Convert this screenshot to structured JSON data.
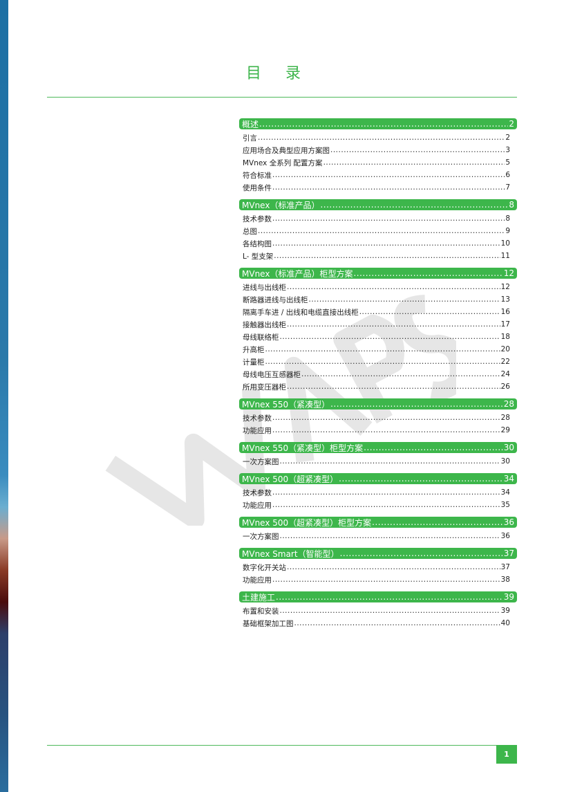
{
  "title": "目  录",
  "watermark": "WAPS",
  "colors": {
    "accent": "#3db64b"
  },
  "sections": [
    {
      "label": "概述",
      "page": "2",
      "items": [
        {
          "label": "引言",
          "page": "2"
        },
        {
          "label": "应用场合及典型应用方案图",
          "page": "3"
        },
        {
          "label": "MVnex 全系列 配置方案",
          "page": "5"
        },
        {
          "label": "符合标准",
          "page": "6"
        },
        {
          "label": "使用条件",
          "page": "7"
        }
      ]
    },
    {
      "label": "MVnex（标准产品）",
      "page": "8",
      "items": [
        {
          "label": "技术参数",
          "page": "8"
        },
        {
          "label": "总图",
          "page": "9"
        },
        {
          "label": "各结构图",
          "page": "10"
        },
        {
          "label": "L- 型支架",
          "page": "11"
        }
      ]
    },
    {
      "label": "MVnex（标准产品）柜型方案",
      "page": "12",
      "items": [
        {
          "label": "进线与出线柜",
          "page": "12"
        },
        {
          "label": "断路器进线与出线柜",
          "page": "13"
        },
        {
          "label": "隔离手车进 / 出线和电缆直接出线柜",
          "page": "16"
        },
        {
          "label": "接触器出线柜",
          "page": "17"
        },
        {
          "label": "母线联络柜",
          "page": "18"
        },
        {
          "label": "升高柜",
          "page": "20"
        },
        {
          "label": "计量柜",
          "page": "22"
        },
        {
          "label": "母线电压互感器柜",
          "page": "24"
        },
        {
          "label": "所用变压器柜",
          "page": "26"
        }
      ]
    },
    {
      "label": "MVnex 550（紧凑型）",
      "page": "28",
      "items": [
        {
          "label": "技术参数",
          "page": "28"
        },
        {
          "label": "功能应用",
          "page": "29"
        }
      ]
    },
    {
      "label": "MVnex 550（紧凑型）柜型方案",
      "page": "30",
      "items": [
        {
          "label": "一次方案图",
          "page": "30"
        }
      ]
    },
    {
      "label": "MVnex 500（超紧凑型）",
      "page": "34",
      "items": [
        {
          "label": "技术参数",
          "page": "34"
        },
        {
          "label": "功能应用",
          "page": "35"
        }
      ]
    },
    {
      "label": "MVnex 500（超紧凑型）柜型方案",
      "page": "36",
      "items": [
        {
          "label": "一次方案图",
          "page": "36"
        }
      ]
    },
    {
      "label": "MVnex Smart（智能型）",
      "page": "37",
      "items": [
        {
          "label": "数字化开关站",
          "page": "37"
        },
        {
          "label": "功能应用",
          "page": "38"
        }
      ]
    },
    {
      "label": "土建施工",
      "page": "39",
      "items": [
        {
          "label": "布置和安装",
          "page": "39"
        },
        {
          "label": "基础框架加工图",
          "page": "40"
        }
      ]
    }
  ],
  "page_number": "1"
}
